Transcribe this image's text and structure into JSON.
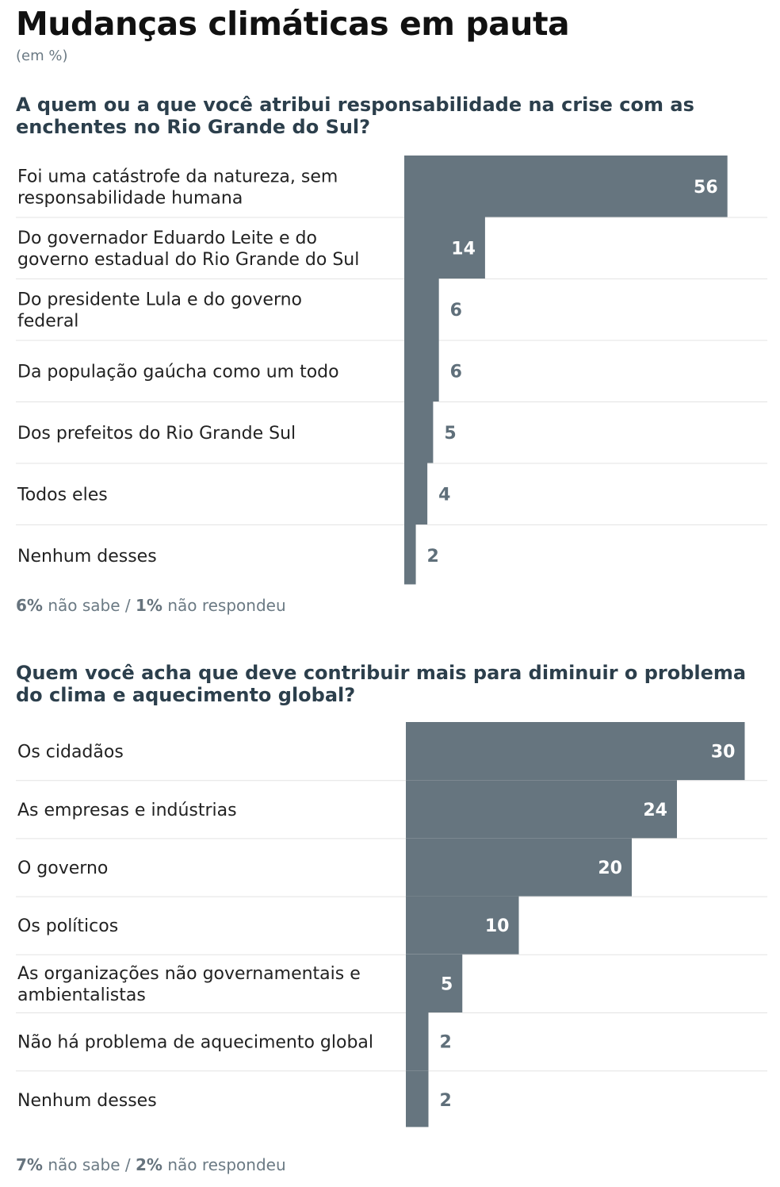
{
  "header": {
    "title": "Mudanças climáticas em pauta",
    "unit": "(em %)"
  },
  "colors": {
    "bar": "#66757f",
    "label_outside": "#5f6f7a",
    "label_inside": "#ffffff",
    "divider": "#e3e3e3"
  },
  "chart_data": [
    {
      "type": "bar",
      "orientation": "horizontal",
      "title": "A quem ou a que você atribui responsabilidade na crise com as enchentes no Rio Grande do Sul?",
      "categories": [
        "Foi uma catástrofe da natureza, sem responsabilidade humana",
        "Do governador Eduardo Leite e do governo estadual do Rio Grande do Sul",
        "Do presidente Lula e do governo federal",
        "Da população gaúcha como um todo",
        "Dos prefeitos do Rio Grande Sul",
        "Todos eles",
        "Nenhum desses"
      ],
      "values": [
        56,
        14,
        6,
        6,
        5,
        4,
        2
      ],
      "footnote": {
        "dont_know": "6%",
        "dont_know_label": "não sabe",
        "sep": " / ",
        "no_answer": "1%",
        "no_answer_label": "não respondeu"
      }
    },
    {
      "type": "bar",
      "orientation": "horizontal",
      "title": "Quem você acha que deve contribuir mais para diminuir o problema do clima e aquecimento global?",
      "categories": [
        "Os cidadãos",
        "As empresas e indústrias",
        "O governo",
        "Os políticos",
        "As organizações não governamentais e ambientalistas",
        "Não há problema de aquecimento global",
        "Nenhum desses"
      ],
      "values": [
        30,
        24,
        20,
        10,
        5,
        2,
        2
      ],
      "footnote": {
        "dont_know": "7%",
        "dont_know_label": "não sabe",
        "sep": " / ",
        "no_answer": "2%",
        "no_answer_label": "não respondeu"
      }
    }
  ]
}
